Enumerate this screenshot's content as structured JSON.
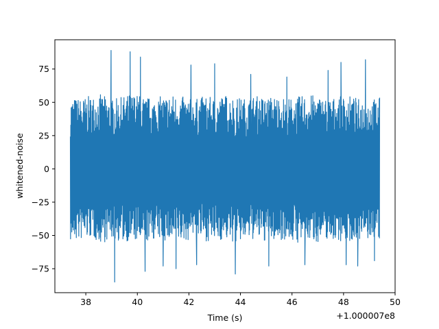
{
  "chart_data": {
    "type": "line",
    "title": "",
    "xlabel": "Time (s)",
    "ylabel": "whitened-noise",
    "x_offset_label": "+1.000007e8",
    "xlim": [
      36.8,
      50.0
    ],
    "ylim": [
      -93,
      97
    ],
    "x_ticks": [
      38,
      40,
      42,
      44,
      46,
      48,
      50
    ],
    "x_tick_labels": [
      "38",
      "40",
      "42",
      "44",
      "46",
      "48",
      "50"
    ],
    "y_ticks": [
      -75,
      -50,
      -25,
      0,
      25,
      50,
      75
    ],
    "y_tick_labels": [
      "−75",
      "−50",
      "−25",
      "0",
      "25",
      "50",
      "75"
    ],
    "grid": false,
    "line_color": "#1f77b4",
    "series": [
      {
        "x_range": [
          37.4,
          49.4
        ],
        "envelope_upper": [
          54,
          53,
          55,
          56,
          52,
          54,
          57,
          55,
          53,
          55,
          56,
          54,
          52,
          55,
          53,
          56,
          54,
          53,
          55,
          54,
          55,
          53,
          54,
          56,
          55,
          53,
          54,
          55,
          53,
          52,
          54
        ],
        "envelope_lower": [
          -55,
          -54,
          -52,
          -56,
          -53,
          -55,
          -54,
          -57,
          -53,
          -54,
          -56,
          -55,
          -52,
          -54,
          -55,
          -53,
          -56,
          -54,
          -53,
          -55,
          -54,
          -53,
          -56,
          -54,
          -55,
          -53,
          -54,
          -55,
          -53,
          -54,
          -55
        ],
        "peaks": [
          {
            "x": 38.98,
            "y": 89
          },
          {
            "x": 39.12,
            "y": -85
          },
          {
            "x": 39.72,
            "y": 88
          },
          {
            "x": 40.12,
            "y": 84
          },
          {
            "x": 40.3,
            "y": -77
          },
          {
            "x": 41.0,
            "y": -73
          },
          {
            "x": 41.5,
            "y": -75
          },
          {
            "x": 42.08,
            "y": 78
          },
          {
            "x": 42.3,
            "y": -72
          },
          {
            "x": 43.0,
            "y": 79
          },
          {
            "x": 43.8,
            "y": -79
          },
          {
            "x": 44.4,
            "y": 71
          },
          {
            "x": 45.1,
            "y": -73
          },
          {
            "x": 45.8,
            "y": 69
          },
          {
            "x": 46.5,
            "y": -72
          },
          {
            "x": 47.4,
            "y": 74
          },
          {
            "x": 47.9,
            "y": 80
          },
          {
            "x": 48.1,
            "y": -72
          },
          {
            "x": 48.55,
            "y": -73
          },
          {
            "x": 48.85,
            "y": 82
          },
          {
            "x": 49.2,
            "y": -69
          }
        ]
      }
    ]
  }
}
